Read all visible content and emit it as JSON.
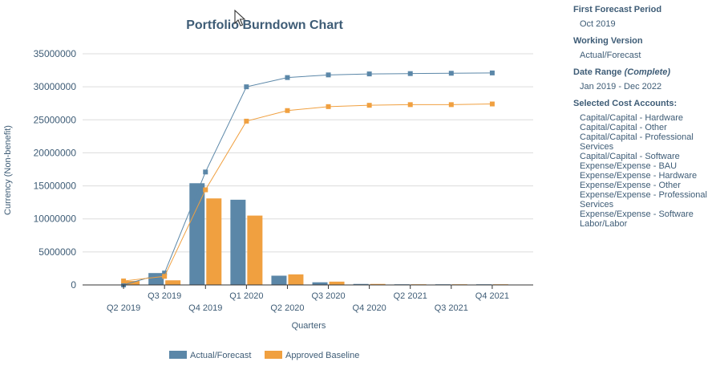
{
  "chart_data": {
    "type": "bar+line",
    "title": "Portfolio Burndown Chart",
    "xlabel": "Quarters",
    "ylabel": "Currency (Non-benefit)",
    "ylim": [
      0,
      35000000
    ],
    "yticks": [
      0,
      5000000,
      10000000,
      15000000,
      20000000,
      25000000,
      30000000,
      35000000
    ],
    "categories": [
      "Q2 2019",
      "Q3 2019",
      "Q4 2019",
      "Q1 2020",
      "Q2 2020",
      "Q3 2020",
      "Q4 2020",
      "Q2 2021",
      "Q3 2021",
      "Q4 2021"
    ],
    "grid": true,
    "legend_position": "bottom",
    "series": [
      {
        "name": "Actual/Forecast",
        "color": "#5b87a8",
        "bars": [
          0,
          1800000,
          15400000,
          12900000,
          1400000,
          400000,
          150000,
          100000,
          100000,
          100000
        ],
        "cumulative": [
          0,
          1800000,
          17100000,
          30000000,
          31400000,
          31800000,
          31950000,
          32000000,
          32050000,
          32100000
        ]
      },
      {
        "name": "Approved Baseline",
        "color": "#f0a040",
        "bars": [
          600000,
          700000,
          13100000,
          10500000,
          1600000,
          500000,
          150000,
          100000,
          100000,
          100000
        ],
        "cumulative": [
          600000,
          1300000,
          14400000,
          24800000,
          26400000,
          27000000,
          27200000,
          27300000,
          27300000,
          27400000
        ]
      }
    ]
  },
  "side": {
    "first_forecast_label": "First Forecast Period",
    "first_forecast_value": "Oct 2019",
    "working_version_label": "Working Version",
    "working_version_value": "Actual/Forecast",
    "date_range_label": "Date Range",
    "date_range_qualifier": "(Complete)",
    "date_range_value": "Jan 2019 - Dec 2022",
    "cost_accounts_label": "Selected  Cost Accounts:",
    "cost_accounts": [
      "Capital/Capital - Hardware",
      "Capital/Capital - Other",
      "Capital/Capital - Professional Services",
      "Capital/Capital - Software",
      "Expense/Expense - BAU",
      "Expense/Expense - Hardware",
      "Expense/Expense - Other",
      "Expense/Expense - Professional Services",
      "Expense/Expense - Software",
      "Labor/Labor"
    ]
  },
  "icons": {
    "cursor": "mouse-pointer-icon"
  }
}
